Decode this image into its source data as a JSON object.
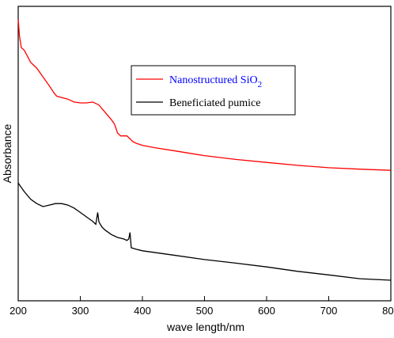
{
  "chart_data": {
    "type": "line",
    "xlabel": "wave length/nm",
    "ylabel": "Absorbance",
    "xlim": [
      200,
      800
    ],
    "ylim": [
      0,
      1
    ],
    "x_ticks": [
      200,
      300,
      400,
      500,
      600,
      700,
      800
    ],
    "y_tick_labels_shown": false,
    "grid": false,
    "legend_position": "upper-center",
    "series": [
      {
        "name": "Nanostructured SiO",
        "name_subscript": "2",
        "color": "#ff0000",
        "label_color": "#0000ff",
        "x": [
          200,
          202,
          205,
          210,
          220,
          230,
          240,
          250,
          258,
          262,
          270,
          280,
          290,
          300,
          310,
          320,
          330,
          340,
          350,
          355,
          360,
          365,
          370,
          375,
          380,
          385,
          390,
          400,
          420,
          450,
          500,
          550,
          600,
          650,
          700,
          750,
          800
        ],
        "y": [
          0.955,
          0.9,
          0.86,
          0.85,
          0.81,
          0.79,
          0.76,
          0.73,
          0.705,
          0.695,
          0.69,
          0.685,
          0.675,
          0.672,
          0.672,
          0.675,
          0.665,
          0.64,
          0.615,
          0.6,
          0.57,
          0.56,
          0.56,
          0.56,
          0.55,
          0.54,
          0.535,
          0.528,
          0.52,
          0.51,
          0.493,
          0.48,
          0.47,
          0.46,
          0.452,
          0.447,
          0.443
        ]
      },
      {
        "name": "Beneficiated pumice",
        "color": "#000000",
        "label_color": "#000000",
        "x": [
          200,
          205,
          210,
          220,
          230,
          240,
          250,
          260,
          270,
          280,
          290,
          300,
          310,
          320,
          325,
          328,
          330,
          335,
          340,
          350,
          360,
          370,
          375,
          378,
          380,
          382,
          390,
          400,
          450,
          500,
          550,
          600,
          650,
          700,
          750,
          800
        ],
        "y": [
          0.4,
          0.385,
          0.37,
          0.345,
          0.33,
          0.32,
          0.325,
          0.33,
          0.33,
          0.325,
          0.315,
          0.3,
          0.285,
          0.27,
          0.26,
          0.3,
          0.268,
          0.25,
          0.24,
          0.225,
          0.215,
          0.21,
          0.205,
          0.21,
          0.232,
          0.18,
          0.175,
          0.17,
          0.155,
          0.14,
          0.128,
          0.115,
          0.1,
          0.088,
          0.075,
          0.07
        ]
      }
    ]
  }
}
